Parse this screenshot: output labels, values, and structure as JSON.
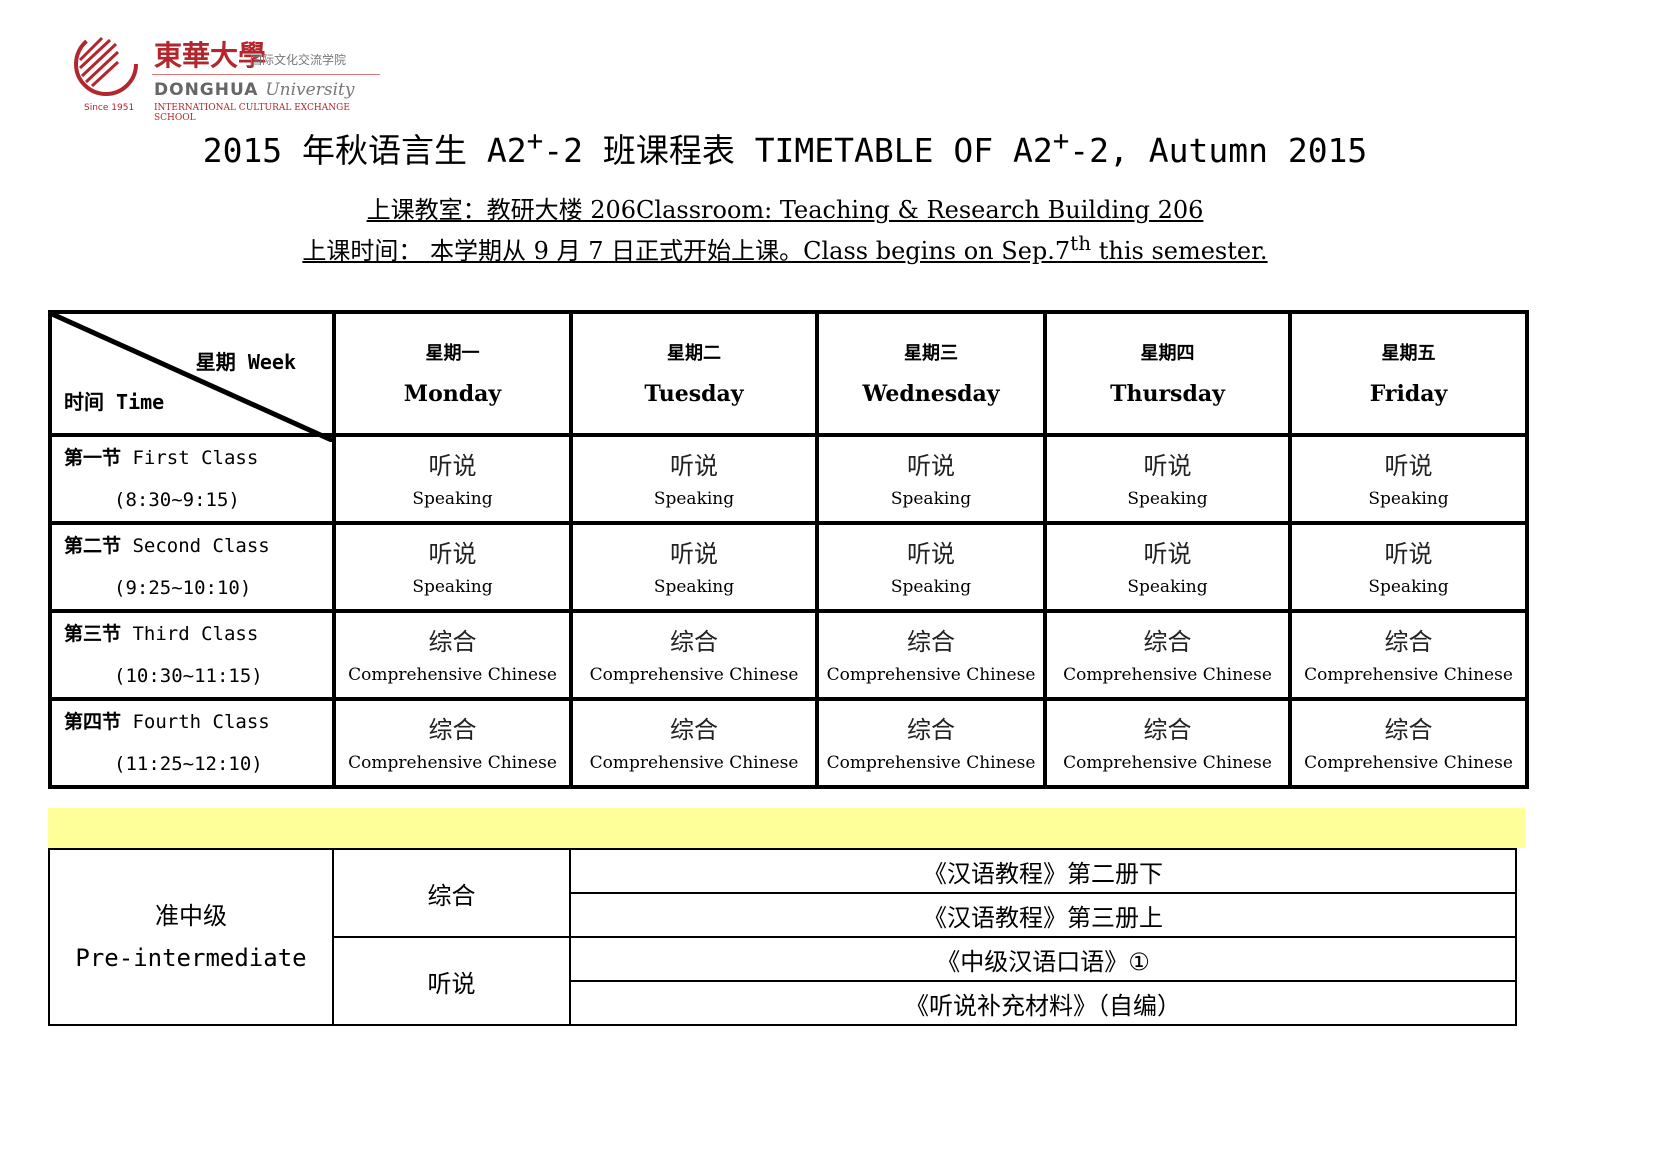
{
  "logo": {
    "cn_name": "東華大學",
    "cn_school": "国际文化交流学院",
    "en_name": "DONGHUA",
    "en_univ": "University",
    "since": "Since 1951",
    "school": "INTERNATIONAL CULTURAL EXCHANGE SCHOOL",
    "brand_color": "#b3262d"
  },
  "title": {
    "pre": "2015 年秋语言生 A2",
    "sup1": "+",
    "mid": "-2 班课程表 TIMETABLE OF A2",
    "sup2": "+",
    "post": "-2, Autumn 2015"
  },
  "classroom": "上课教室：教研大楼 206Classroom: Teaching & Research Building 206",
  "time": {
    "pre": "上课时间：   本学期从 9 月 7 日正式开始上课。Class begins on Sep.7",
    "sup": "th",
    "post": " this semester."
  },
  "timetable": {
    "corner": {
      "week": "星期 Week",
      "time": "时间 Time"
    },
    "days": [
      {
        "cn": "星期一",
        "en": "Monday"
      },
      {
        "cn": "星期二",
        "en": "Tuesday"
      },
      {
        "cn": "星期三",
        "en": "Wednesday"
      },
      {
        "cn": "星期四",
        "en": "Thursday"
      },
      {
        "cn": "星期五",
        "en": "Friday"
      }
    ],
    "periods": [
      {
        "cn": "第一节",
        "en": "First Class",
        "time": "(8:30~9:15)",
        "course_cn": "听说",
        "course_en": "Speaking"
      },
      {
        "cn": "第二节",
        "en": "Second Class",
        "time": "(9:25~10:10)",
        "course_cn": "听说",
        "course_en": "Speaking"
      },
      {
        "cn": "第三节",
        "en": "Third Class",
        "time": "(10:30~11:15)",
        "course_cn": "综合",
        "course_en": "Comprehensive Chinese"
      },
      {
        "cn": "第四节",
        "en": "Fourth Class",
        "time": "(11:25~12:10)",
        "course_cn": "综合",
        "course_en": "Comprehensive Chinese"
      }
    ]
  },
  "highlight_color": "#ffff99",
  "textbooks": {
    "level_cn": "准中级",
    "level_en": "Pre-intermediate",
    "groups": [
      {
        "course": "综合",
        "books": [
          "《汉语教程》第二册下",
          "《汉语教程》第三册上"
        ]
      },
      {
        "course": "听说",
        "books": [
          "《中级汉语口语》①",
          "《听说补充材料》（自编）"
        ]
      }
    ]
  }
}
